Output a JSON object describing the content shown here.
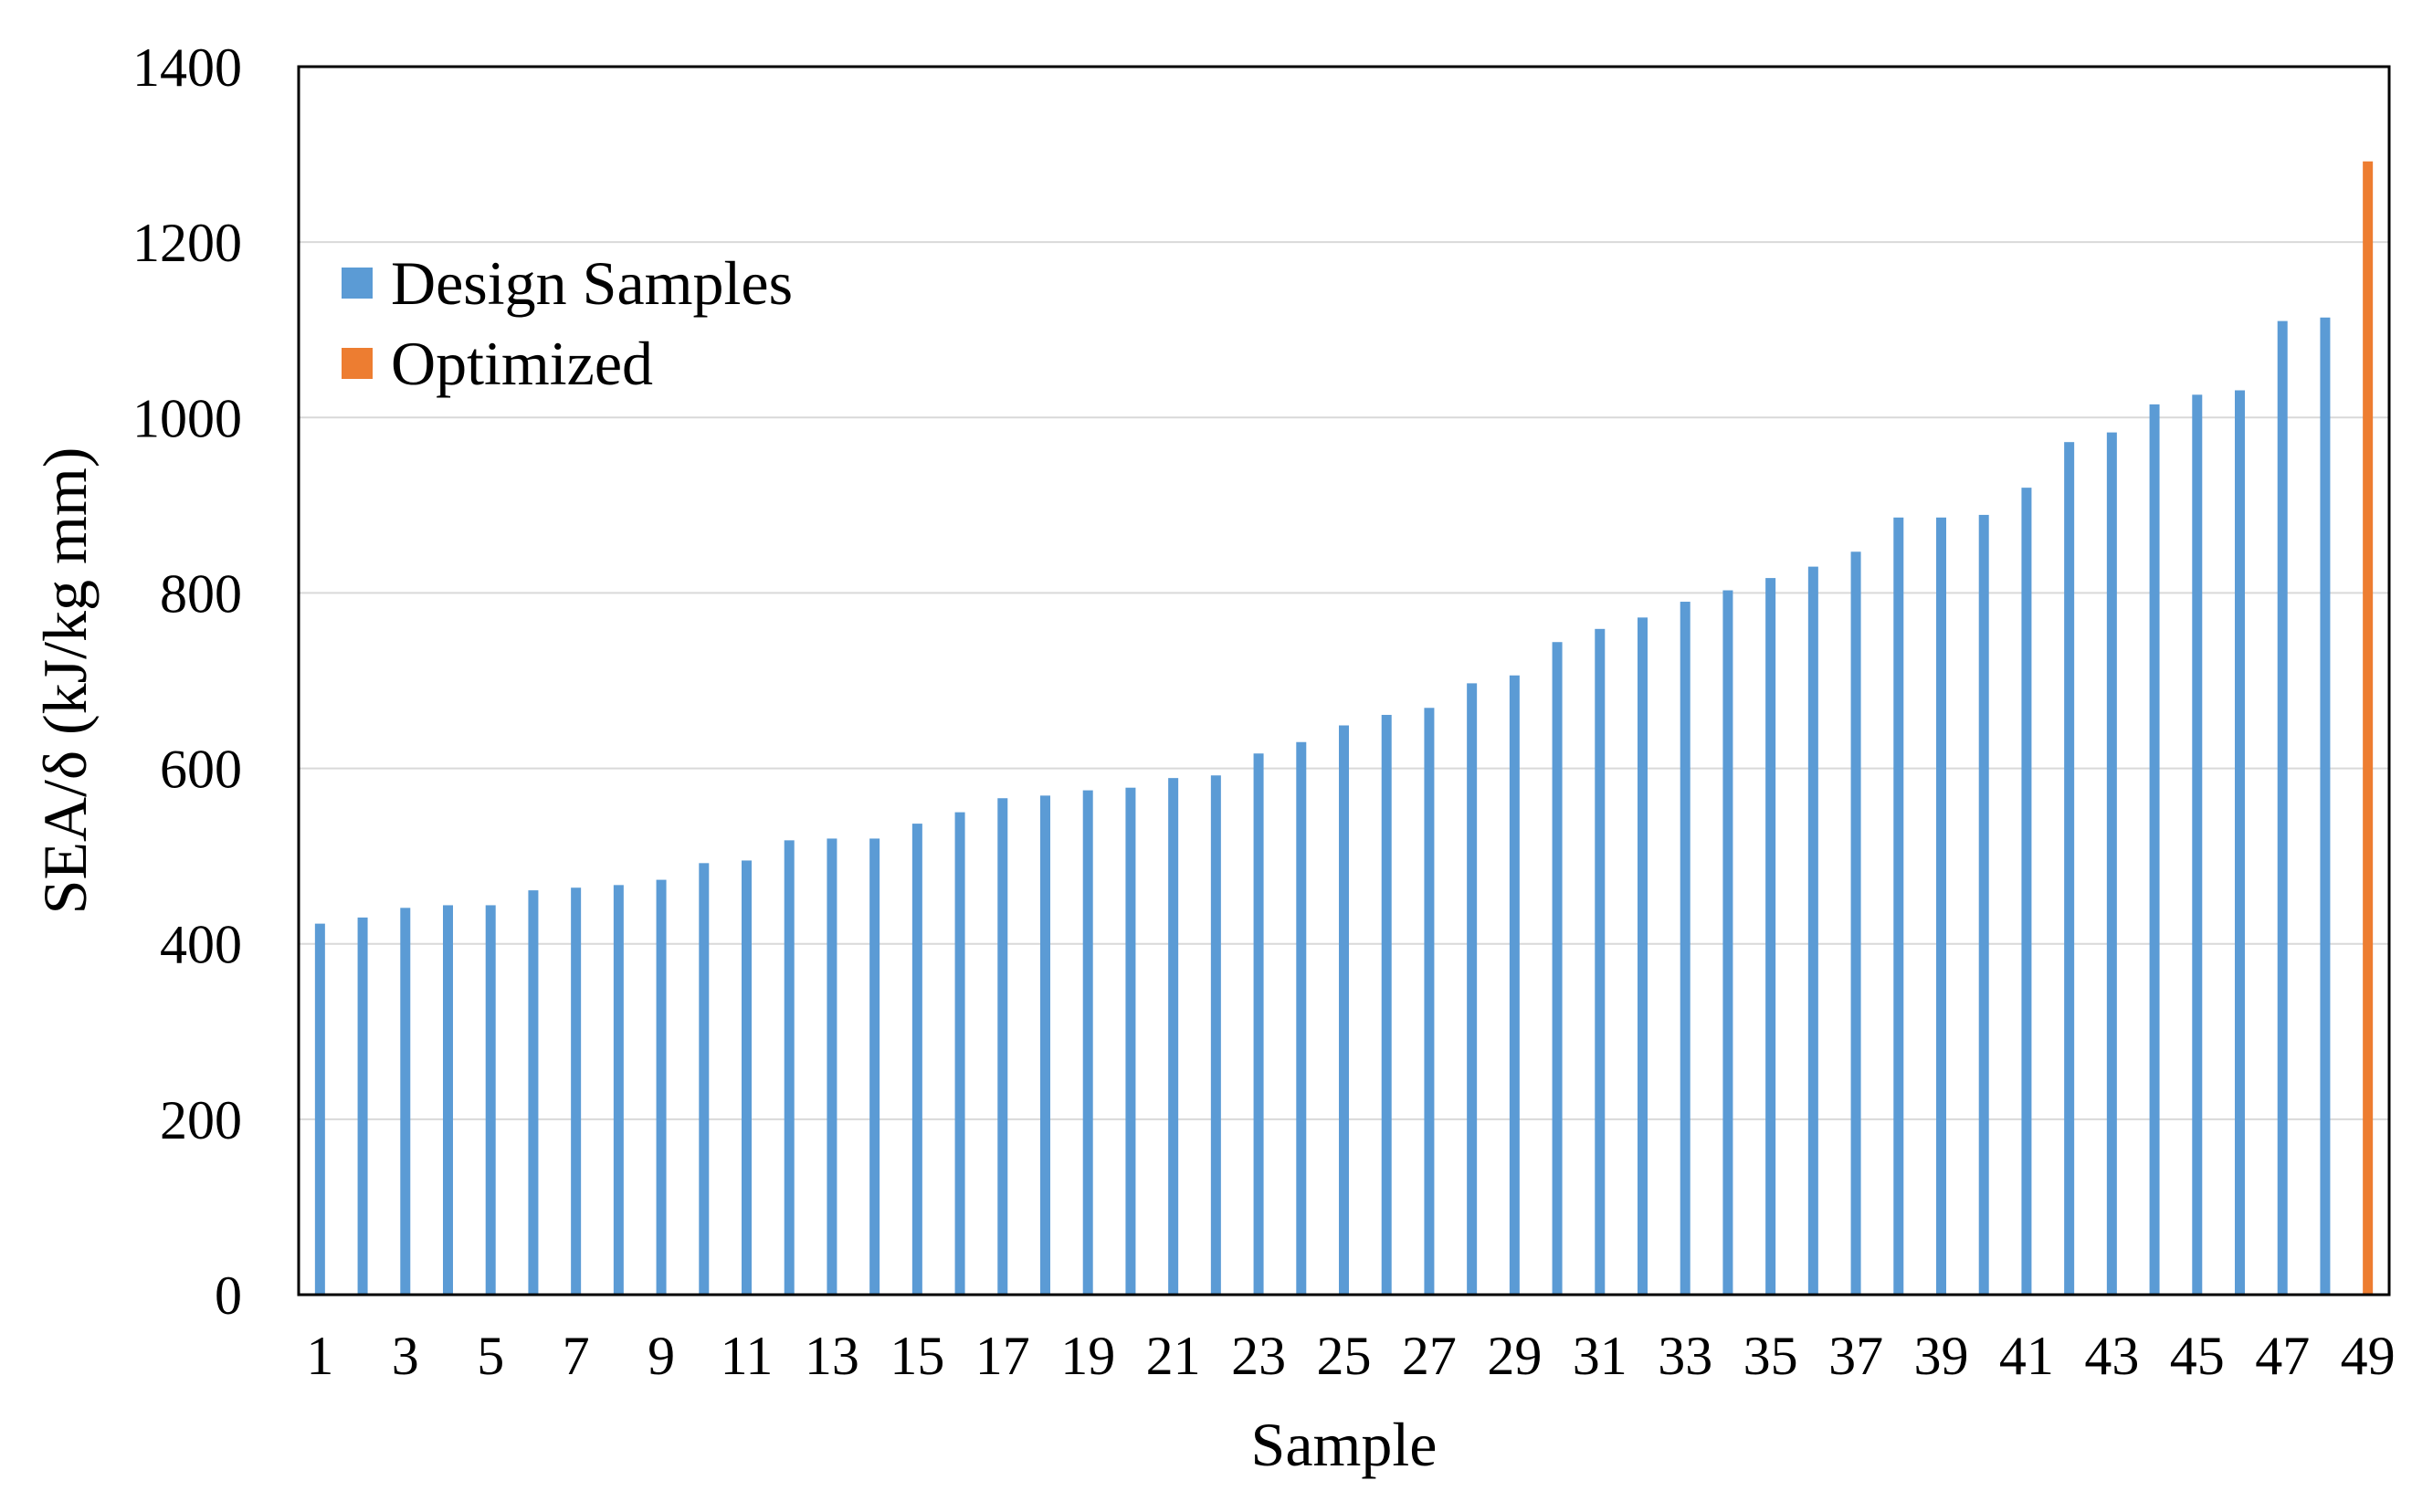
{
  "chart_data": {
    "type": "bar",
    "title": "",
    "xlabel": "Sample",
    "ylabel": "SEA/δ (kJ/kg mm)",
    "ylim": [
      0,
      1400
    ],
    "yticks": [
      "0",
      "200",
      "400",
      "600",
      "800",
      "1000",
      "1200",
      "1400"
    ],
    "xtick_labels": [
      "1",
      "3",
      "5",
      "7",
      "9",
      "11",
      "13",
      "15",
      "17",
      "19",
      "21",
      "23",
      "25",
      "27",
      "29",
      "31",
      "33",
      "35",
      "37",
      "39",
      "41",
      "43",
      "45",
      "47",
      "49"
    ],
    "grid": true,
    "legend_position": "top-left",
    "categories": [
      1,
      2,
      3,
      4,
      5,
      6,
      7,
      8,
      9,
      10,
      11,
      12,
      13,
      14,
      15,
      16,
      17,
      18,
      19,
      20,
      21,
      22,
      23,
      24,
      25,
      26,
      27,
      28,
      29,
      30,
      31,
      32,
      33,
      34,
      35,
      36,
      37,
      38,
      39,
      40,
      41,
      42,
      43,
      44,
      45,
      46,
      47,
      48,
      49
    ],
    "series": [
      {
        "name": "Design Samples",
        "color": "#5B9BD5",
        "values": [
          423,
          430,
          441,
          444,
          444,
          461,
          464,
          467,
          473,
          492,
          495,
          518,
          520,
          520,
          537,
          550,
          566,
          569,
          575,
          578,
          589,
          592,
          617,
          630,
          649,
          661,
          669,
          697,
          706,
          744,
          759,
          772,
          790,
          803,
          817,
          830,
          847,
          886,
          886,
          889,
          920,
          972,
          983,
          1015,
          1026,
          1031,
          1110,
          1114,
          null
        ]
      },
      {
        "name": "Optimized",
        "color": "#ED7D31",
        "values": [
          null,
          null,
          null,
          null,
          null,
          null,
          null,
          null,
          null,
          null,
          null,
          null,
          null,
          null,
          null,
          null,
          null,
          null,
          null,
          null,
          null,
          null,
          null,
          null,
          null,
          null,
          null,
          null,
          null,
          null,
          null,
          null,
          null,
          null,
          null,
          null,
          null,
          null,
          null,
          null,
          null,
          null,
          null,
          null,
          null,
          null,
          null,
          null,
          1292
        ]
      }
    ]
  }
}
